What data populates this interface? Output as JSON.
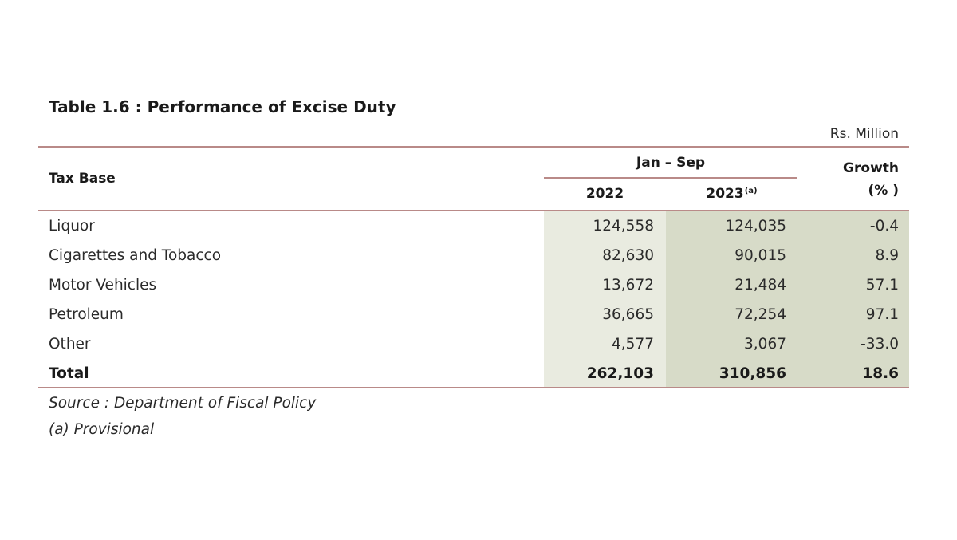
{
  "title": "Table 1.6 : Performance of Excise Duty",
  "unit": "Rs. Million",
  "header": {
    "tax_base": "Tax Base",
    "period": "Jan – Sep",
    "year_2022": "2022",
    "year_2023": "2023",
    "year_2023_note": "(a)",
    "growth_line1": "Growth",
    "growth_line2": "(% )"
  },
  "rows": [
    {
      "label": "Liquor",
      "v2022": "124,558",
      "v2023": "124,035",
      "growth": "-0.4"
    },
    {
      "label": "Cigarettes and Tobacco",
      "v2022": "82,630",
      "v2023": "90,015",
      "growth": "8.9"
    },
    {
      "label": "Motor Vehicles",
      "v2022": "13,672",
      "v2023": "21,484",
      "growth": "57.1"
    },
    {
      "label": "Petroleum",
      "v2022": "36,665",
      "v2023": "72,254",
      "growth": "97.1"
    },
    {
      "label": "Other",
      "v2022": "4,577",
      "v2023": "3,067",
      "growth": "-33.0"
    }
  ],
  "total": {
    "label": "Total",
    "v2022": "262,103",
    "v2023": "310,856",
    "growth": "18.6"
  },
  "notes": {
    "source": "Source : Department of Fiscal Policy",
    "provisional": "(a) Provisional"
  },
  "colors": {
    "rule": "#b98a88",
    "shade_2022": "#e9ebe0",
    "shade_2023_growth": "#d7dbc8"
  },
  "chart_data": {
    "type": "table",
    "title": "Table 1.6 : Performance of Excise Duty",
    "unit": "Rs. Million",
    "columns": [
      "Tax Base",
      "2022",
      "2023(a)",
      "Growth (% )"
    ],
    "rows": [
      [
        "Liquor",
        124558,
        124035,
        -0.4
      ],
      [
        "Cigarettes and Tobacco",
        82630,
        90015,
        8.9
      ],
      [
        "Motor Vehicles",
        13672,
        21484,
        57.1
      ],
      [
        "Petroleum",
        36665,
        72254,
        97.1
      ],
      [
        "Other",
        4577,
        3067,
        -33.0
      ],
      [
        "Total",
        262103,
        310856,
        18.6
      ]
    ]
  }
}
